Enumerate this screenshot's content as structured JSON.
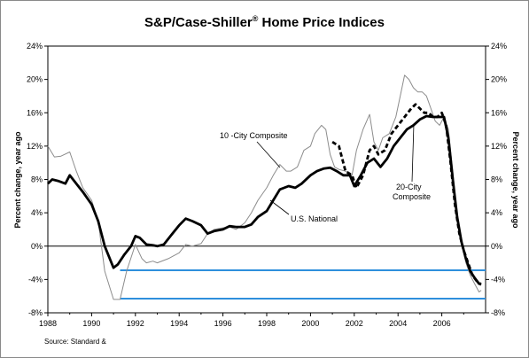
{
  "chart_data": {
    "type": "line",
    "title": "S&P/Case-Shiller",
    "title_mark": "®",
    "title_rest": " Home Price Indices",
    "ylabel_left": "Percent change, year ago",
    "ylabel_right": "Percent change, year ago",
    "xlim": [
      1988,
      2008
    ],
    "ylim": [
      -8,
      24
    ],
    "yticks": [
      -8,
      -4,
      0,
      4,
      8,
      12,
      16,
      20,
      24
    ],
    "yticks_left": [
      "-8%",
      "-4%",
      "0%",
      "4%",
      "8%",
      "12%",
      "16%",
      "20%",
      "24%"
    ],
    "yticks_right": [
      "-8%",
      "-4%",
      "0%",
      "4%",
      "8%",
      "12%",
      "16%",
      "20%",
      "24%"
    ],
    "xticks": [
      "1988",
      "1990",
      "1992",
      "1994",
      "1996",
      "1998",
      "2000",
      "2002",
      "2004",
      "2006"
    ],
    "grid": false,
    "zero_line": 0,
    "reference_lines": [
      -2.9,
      -6.3
    ],
    "reference_line_color": "#2e8fdc",
    "source": "Source: Standard &",
    "series": [
      {
        "name": "10 -City Composite",
        "style": "thin gray",
        "color": "#8c8c8c",
        "x": [
          1988.0,
          1988.3,
          1988.6,
          1989.0,
          1989.3,
          1989.6,
          1990.0,
          1990.3,
          1990.6,
          1991.0,
          1991.3,
          1991.6,
          1992.0,
          1992.3,
          1992.5,
          1992.8,
          1993.0,
          1993.5,
          1994.0,
          1994.3,
          1994.6,
          1995.0,
          1995.3,
          1995.6,
          1996.0,
          1996.3,
          1996.6,
          1997.0,
          1997.3,
          1997.6,
          1998.0,
          1998.3,
          1998.6,
          1998.9,
          1999.1,
          1999.4,
          1999.7,
          2000.0,
          2000.2,
          2000.5,
          2000.7,
          2000.9,
          2001.1,
          2001.3,
          2001.6,
          2001.9,
          2002.1,
          2002.4,
          2002.7,
          2002.9,
          2003.1,
          2003.3,
          2003.6,
          2003.9,
          2004.1,
          2004.3,
          2004.5,
          2004.7,
          2004.9,
          2005.1,
          2005.3,
          2005.5,
          2005.7,
          2005.9,
          2006.1,
          2006.3,
          2006.5,
          2006.7,
          2006.9,
          2007.1,
          2007.3,
          2007.5,
          2007.7,
          2007.8
        ],
        "y": [
          12.0,
          10.7,
          10.8,
          11.3,
          9.0,
          7.0,
          5.5,
          3.0,
          -3.0,
          -6.4,
          -6.4,
          -3.0,
          0.2,
          -1.5,
          -2.0,
          -1.8,
          -2.0,
          -1.5,
          -0.8,
          0.2,
          0.0,
          0.3,
          1.5,
          2.0,
          2.2,
          2.3,
          2.0,
          2.8,
          4.0,
          5.5,
          7.0,
          8.5,
          9.8,
          9.0,
          9.0,
          9.5,
          11.5,
          12.0,
          13.5,
          14.5,
          14.0,
          11.0,
          9.5,
          9.2,
          9.0,
          8.5,
          11.5,
          14.0,
          15.8,
          12.5,
          11.5,
          13.0,
          13.5,
          15.5,
          18.0,
          20.5,
          20.0,
          19.0,
          18.5,
          18.5,
          18.0,
          16.5,
          15.0,
          14.5,
          15.5,
          14.0,
          9.0,
          3.5,
          0.5,
          -2.0,
          -3.5,
          -4.5,
          -5.5,
          -5.3
        ]
      },
      {
        "name": "U.S. National",
        "style": "thick black",
        "color": "#000000",
        "x": [
          1988.0,
          1988.2,
          1988.5,
          1988.8,
          1989.0,
          1989.3,
          1989.6,
          1990.0,
          1990.3,
          1990.6,
          1991.0,
          1991.2,
          1991.5,
          1991.8,
          1992.0,
          1992.2,
          1992.5,
          1992.8,
          1993.0,
          1993.3,
          1993.6,
          1994.0,
          1994.3,
          1994.6,
          1995.0,
          1995.3,
          1995.6,
          1996.0,
          1996.3,
          1996.6,
          1997.0,
          1997.3,
          1997.6,
          1998.0,
          1998.3,
          1998.6,
          1999.0,
          1999.3,
          1999.6,
          2000.0,
          2000.3,
          2000.6,
          2000.9,
          2001.2,
          2001.5,
          2001.8,
          2002.0,
          2002.3,
          2002.6,
          2002.9,
          2003.2,
          2003.5,
          2003.8,
          2004.1,
          2004.4,
          2004.7,
          2005.0,
          2005.3,
          2005.6,
          2005.9,
          2006.1,
          2006.3,
          2006.5,
          2006.7,
          2006.9,
          2007.1,
          2007.3,
          2007.5,
          2007.7,
          2007.8
        ],
        "y": [
          7.5,
          8.0,
          7.8,
          7.5,
          8.5,
          7.5,
          6.5,
          5.0,
          3.0,
          0.0,
          -2.6,
          -2.2,
          -1.0,
          0.0,
          1.2,
          1.0,
          0.2,
          0.1,
          0.0,
          0.2,
          1.2,
          2.5,
          3.3,
          3.0,
          2.5,
          1.5,
          1.8,
          2.0,
          2.4,
          2.3,
          2.3,
          2.6,
          3.5,
          4.2,
          5.5,
          6.8,
          7.2,
          7.0,
          7.5,
          8.5,
          9.0,
          9.3,
          9.4,
          9.0,
          8.5,
          8.5,
          7.2,
          8.5,
          10.0,
          10.5,
          9.5,
          10.5,
          12.0,
          13.0,
          14.0,
          14.5,
          15.2,
          15.6,
          15.5,
          15.5,
          15.5,
          13.0,
          8.0,
          3.5,
          0.5,
          -1.5,
          -3.0,
          -3.8,
          -4.5,
          -4.5
        ]
      },
      {
        "name": "20-City Composite",
        "name_lines": [
          "20-City",
          "Composite"
        ],
        "style": "thick dashed black",
        "color": "#000000",
        "x": [
          2001.0,
          2001.3,
          2001.6,
          2001.9,
          2002.1,
          2002.4,
          2002.7,
          2002.9,
          2003.1,
          2003.4,
          2003.7,
          2004.0,
          2004.3,
          2004.6,
          2004.8,
          2005.0,
          2005.2,
          2005.4,
          2005.6,
          2005.8,
          2006.0,
          2006.2,
          2006.4,
          2006.6,
          2006.8,
          2007.0,
          2007.2,
          2007.4,
          2007.6,
          2007.7,
          2007.8
        ],
        "y": [
          12.5,
          12.0,
          9.0,
          8.5,
          7.0,
          8.5,
          11.5,
          12.0,
          11.0,
          11.5,
          13.5,
          14.5,
          15.5,
          16.5,
          17.0,
          16.5,
          16.0,
          16.0,
          15.5,
          15.5,
          16.0,
          14.5,
          10.0,
          5.0,
          1.5,
          -0.5,
          -2.0,
          -3.5,
          -4.2,
          -4.5,
          -4.6
        ]
      }
    ],
    "annotations": [
      {
        "text": "10 -City Composite",
        "points_to": [
          1998.7,
          9.2
        ]
      },
      {
        "text": "U.S. National",
        "points_to": [
          1998.2,
          5.2
        ]
      },
      {
        "text": "20-City Composite",
        "points_to": [
          2004.7,
          16.0
        ]
      }
    ]
  }
}
